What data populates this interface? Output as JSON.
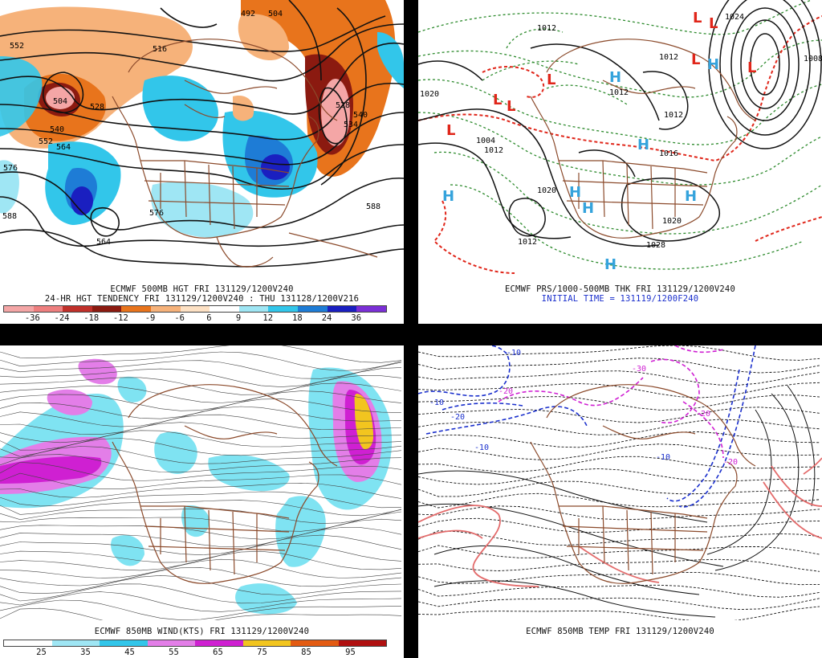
{
  "panels": {
    "tl": {
      "caption1": "ECMWF 500MB HGT FRI 131129/1200V240",
      "caption2": "24-HR HGT TENDENCY FRI 131129/1200V240 : THU 131128/1200V216",
      "scale_ticks": [
        "-36",
        "-24",
        "-18",
        "-12",
        "-9",
        "-6",
        "6",
        "9",
        "12",
        "18",
        "24",
        "36"
      ],
      "scale_colors": [
        "#f4a6a6",
        "#ee7f7f",
        "#c0302a",
        "#8b1a10",
        "#e8741c",
        "#f6b27a",
        "#fde1c4",
        "#ffffff",
        "#9fe6f4",
        "#32c6ea",
        "#1e7cd6",
        "#1a1fc0",
        "#7b2fd6"
      ],
      "contour_labels": [
        "492",
        "504",
        "552",
        "516",
        "504",
        "528",
        "540",
        "552",
        "564",
        "576",
        "588",
        "588",
        "528",
        "540",
        "534",
        "564",
        "576"
      ],
      "colors": {
        "warm": "#e8741c",
        "warm_dark": "#8b1a10",
        "warm_light": "#f6b27a",
        "cool": "#32c6ea",
        "cool_dark": "#1a1fc0",
        "cool_light": "#9fe6f4",
        "map": "#8b4a2b"
      }
    },
    "tr": {
      "caption1": "ECMWF PRS/1000-500MB THK FRI 131129/1200V240",
      "caption2": "INITIAL TIME = 131119/1200F240",
      "pressure_labels": [
        "1012",
        "1012",
        "1020",
        "1024",
        "1008",
        "1012",
        "1012",
        "1004",
        "1012",
        "1020",
        "1028",
        "1020",
        "1012",
        "1016"
      ],
      "highs": [
        "H",
        "H",
        "H",
        "H",
        "H",
        "H",
        "H",
        "H"
      ],
      "lows": [
        "L",
        "L",
        "L",
        "L",
        "L",
        "L",
        "L",
        "L"
      ],
      "colors": {
        "high": "#35a3dc",
        "low": "#e0261a",
        "thickness": "#2e8b2e",
        "isobar": "#111111",
        "freezing": "#e0261a"
      }
    },
    "bl": {
      "caption1": "ECMWF 850MB WIND(KTS) FRI 131129/1200V240",
      "scale_ticks": [
        "25",
        "35",
        "45",
        "55",
        "65",
        "75",
        "85",
        "95"
      ],
      "scale_colors": [
        "#ffffff",
        "#9fe6f4",
        "#32c6ea",
        "#e37ee8",
        "#cf20d2",
        "#f2c51f",
        "#e35b12",
        "#b01010"
      ],
      "colors": {
        "jet_light": "#7fe3f2",
        "jet_mid": "#e37ee8",
        "jet_strong": "#cf20d2",
        "jet_max": "#f2c51f"
      }
    },
    "br": {
      "caption1": "ECMWF 850MB TEMP FRI 131129/1200V240",
      "isotherm_labels": [
        "-10",
        "-10",
        "-20",
        "-20",
        "-30",
        "-10",
        "-20",
        "-10",
        "-20"
      ],
      "colors": {
        "cold": "#1a2fcc",
        "very_cold": "#cf20d2",
        "warm": "#e36b6b",
        "neutral": "#111111"
      }
    }
  }
}
